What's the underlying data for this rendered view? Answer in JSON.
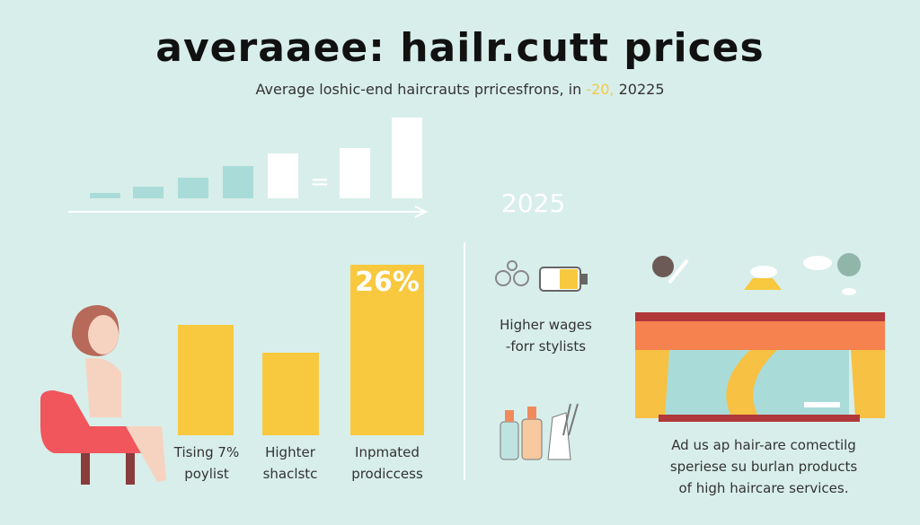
{
  "title": "averaaee: hailr.cutt prices",
  "subtitle": {
    "before": "Average loshic-end haircrauts prricesfrons, in ",
    "highlight": "-20,",
    "after": " 20225"
  },
  "year_label": "2025",
  "colors": {
    "background": "#d8eeea",
    "bar": "#f8c93e",
    "accent": "#f3c94a"
  },
  "bars": [
    {
      "label_line1": "Tising 7%",
      "label_line2": "poylist"
    },
    {
      "label_line1": "Highter",
      "label_line2": "shaclstc"
    },
    {
      "label_line1": "Inpmated",
      "label_line2": "prodiccess",
      "value_label": "26%"
    }
  ],
  "middle_caption": {
    "line1": "Higher wages",
    "line2": "-forr stylists"
  },
  "right_caption": {
    "line1": "Ad us ap hair-are comectilg",
    "line2": "speriese su burlan products",
    "line3": "of high haircare services."
  }
}
